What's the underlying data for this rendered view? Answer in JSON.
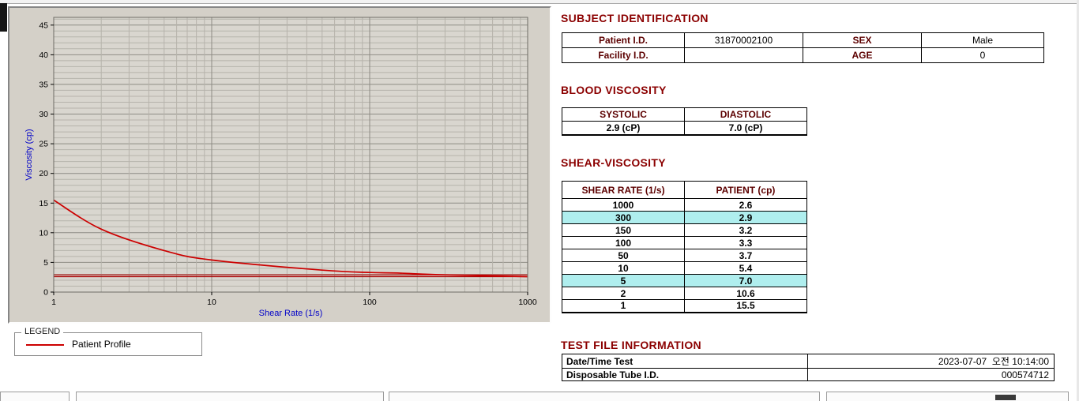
{
  "colors": {
    "heading": "#8B0000",
    "table_header_bg": "#F18A8A",
    "header_text": "#5C0000",
    "highlight_bg": "#AFEEEE",
    "series_red": "#CC0000",
    "axis_label_blue": "#0000C8"
  },
  "chart_data": {
    "type": "line",
    "title": "",
    "xlabel": "Shear Rate (1/s)",
    "ylabel": "Viscosity (cp)",
    "x_scale": "log",
    "xlim": [
      1,
      1000
    ],
    "ylim": [
      0,
      45
    ],
    "x_ticks": [
      1,
      10,
      100,
      1000
    ],
    "y_ticks": [
      0,
      5,
      10,
      15,
      20,
      25,
      30,
      35,
      40,
      45
    ],
    "grid": "major+minor, both axes",
    "series": [
      {
        "name": "Patient Profile",
        "color": "#CC0000",
        "x": [
          1,
          2,
          5,
          10,
          50,
          100,
          150,
          300,
          1000
        ],
        "y": [
          15.5,
          10.6,
          7.0,
          5.4,
          3.7,
          3.3,
          3.2,
          2.9,
          2.6
        ]
      }
    ],
    "reference_lines": [
      {
        "y": 2.9,
        "color": "#AA0000"
      },
      {
        "y": 2.6,
        "color": "#AA0000"
      }
    ],
    "legend": {
      "title": "LEGEND",
      "position": "below-left",
      "entries": [
        {
          "label": "Patient Profile",
          "color": "#CC0000"
        }
      ]
    }
  },
  "subject": {
    "title": "SUBJECT IDENTIFICATION",
    "rows": [
      {
        "label1": "Patient I.D.",
        "value1": "31870002100",
        "label2": "SEX",
        "value2": "Male"
      },
      {
        "label1": "Facility I.D.",
        "value1": "",
        "label2": "AGE",
        "value2": "0"
      }
    ]
  },
  "blood_viscosity": {
    "title": "BLOOD VISCOSITY",
    "headers": [
      "SYSTOLIC",
      "DIASTOLIC"
    ],
    "values": [
      "2.9 (cP)",
      "7.0 (cP)"
    ]
  },
  "shear_viscosity": {
    "title": "SHEAR-VISCOSITY",
    "headers": [
      "SHEAR RATE (1/s)",
      "PATIENT (cp)"
    ],
    "rows": [
      {
        "rate": "1000",
        "value": "2.6",
        "highlight": false
      },
      {
        "rate": "300",
        "value": "2.9",
        "highlight": true
      },
      {
        "rate": "150",
        "value": "3.2",
        "highlight": false
      },
      {
        "rate": "100",
        "value": "3.3",
        "highlight": false
      },
      {
        "rate": "50",
        "value": "3.7",
        "highlight": false
      },
      {
        "rate": "10",
        "value": "5.4",
        "highlight": false
      },
      {
        "rate": "5",
        "value": "7.0",
        "highlight": true
      },
      {
        "rate": "2",
        "value": "10.6",
        "highlight": false
      },
      {
        "rate": "1",
        "value": "15.5",
        "highlight": false
      }
    ]
  },
  "test_file": {
    "title": "TEST FILE INFORMATION",
    "rows": [
      {
        "label": "Date/Time Test",
        "value": "2023-07-07  오전 10:14:00"
      },
      {
        "label": "Disposable Tube I.D.",
        "value": "000574712"
      }
    ]
  }
}
